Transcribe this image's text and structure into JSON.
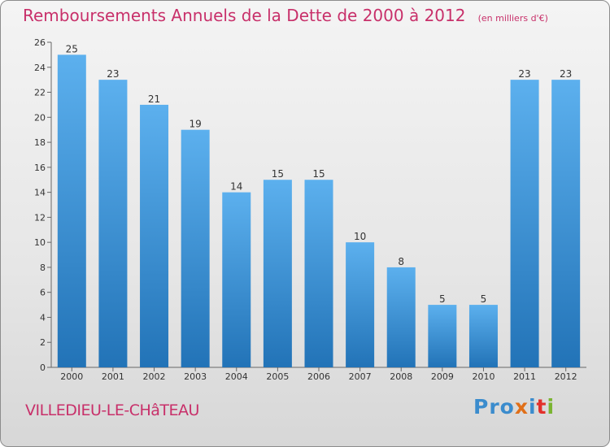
{
  "chart_data": {
    "type": "bar",
    "title": "Remboursements Annuels de la Dette de 2000 à 2012",
    "subtitle": "(en milliers d'€)",
    "categories": [
      "2000",
      "2001",
      "2002",
      "2003",
      "2004",
      "2005",
      "2006",
      "2007",
      "2008",
      "2009",
      "2010",
      "2011",
      "2012"
    ],
    "values": [
      25,
      23,
      21,
      19,
      14,
      15,
      15,
      10,
      8,
      5,
      5,
      23,
      23
    ],
    "ylim": [
      0,
      26
    ],
    "yticks": [
      0,
      2,
      4,
      6,
      8,
      10,
      12,
      14,
      16,
      18,
      20,
      22,
      24,
      26
    ],
    "grid": false,
    "xlabel": "",
    "ylabel": "",
    "colors": {
      "bar_light": "#5cb0ee",
      "bar_dark": "#2273b7",
      "title": "#c8306a"
    }
  },
  "footer": {
    "commune": "VILLEDIEU-LE-CHâTEAU",
    "logo_parts": [
      "Pro",
      "x",
      "i",
      "t",
      "i"
    ]
  }
}
